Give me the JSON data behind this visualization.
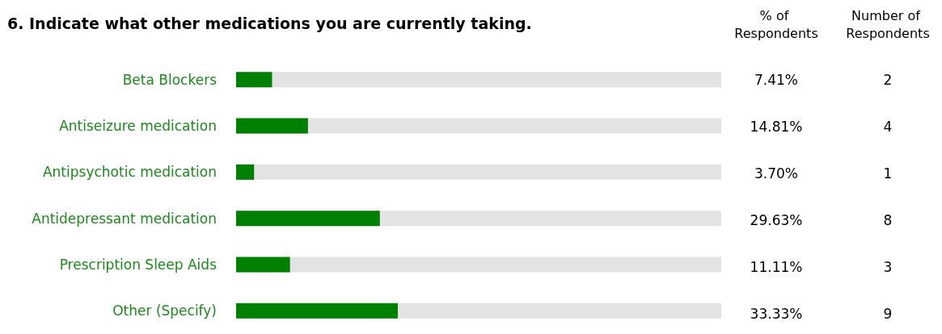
{
  "chart_data": [
    {
      "type": "bar",
      "orientation": "horizontal",
      "title": "6. Indicate what other medications you are currently taking.",
      "categories": [
        "Beta Blockers",
        "Antiseizure medication",
        "Antipsychotic medication",
        "Antidepressant medication",
        "Prescription Sleep Aids",
        "Other (Specify)"
      ],
      "series": [
        {
          "name": "% of Respondents",
          "color": "#008000",
          "values": [
            7.41,
            14.81,
            3.7,
            29.63,
            11.11,
            33.33
          ],
          "value_labels": [
            "7.41%",
            "14.81%",
            "3.70%",
            "29.63%",
            "11.11%",
            "33.33%"
          ]
        }
      ],
      "xlim": [
        0,
        100
      ]
    },
    {
      "type": "other",
      "title": "Number of Respondents",
      "categories": [
        null,
        null,
        null,
        null,
        null,
        null
      ],
      "values": [
        2,
        4,
        1,
        8,
        3,
        9
      ],
      "data_labels": true
    }
  ]
}
